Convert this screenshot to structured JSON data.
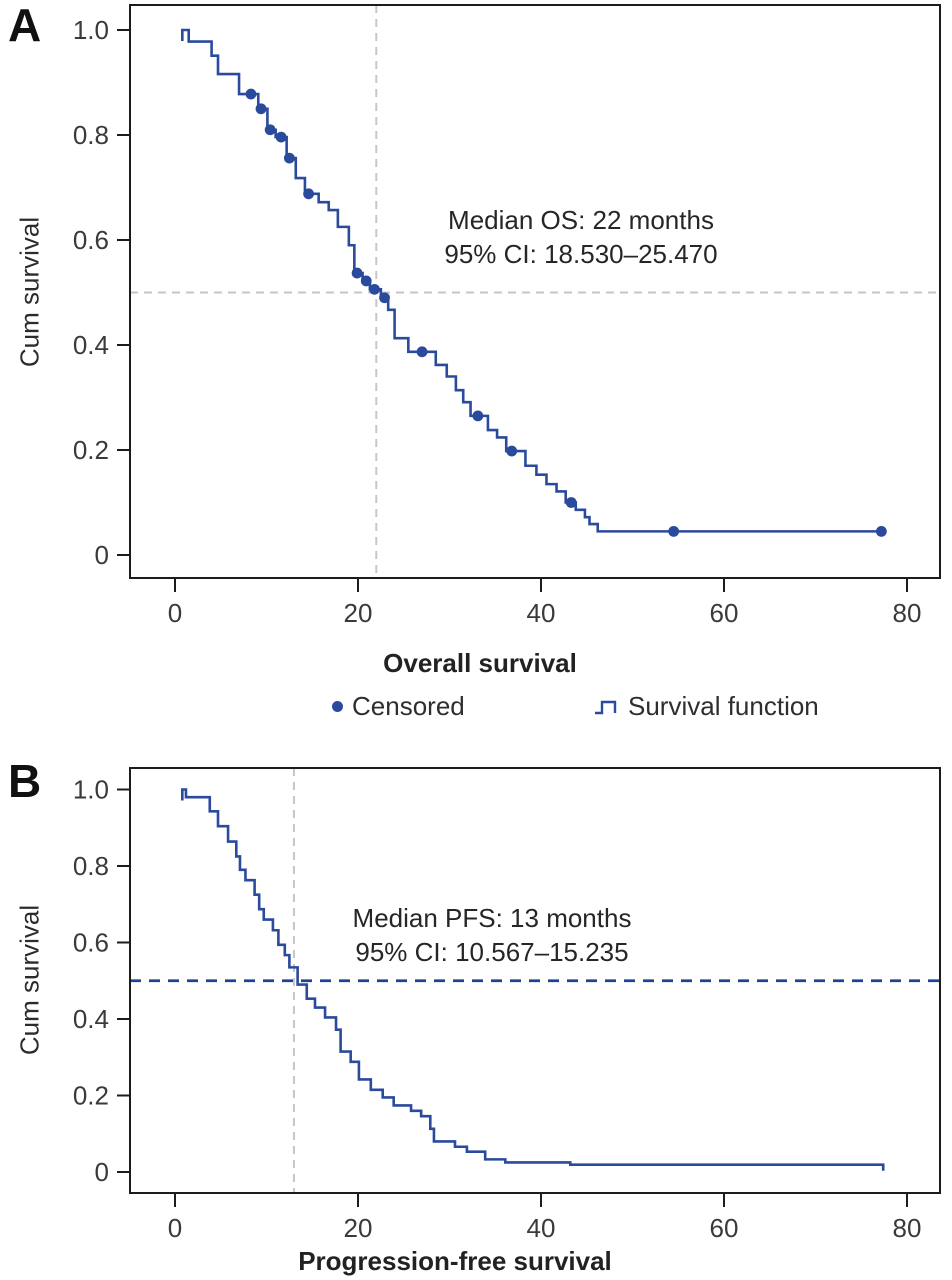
{
  "figure": {
    "panels": [
      {
        "letter": "A",
        "ylabel": "Cum survival",
        "xlabel": "Overall survival",
        "annotation_line1": "Median OS: 22 months",
        "annotation_line2": "95% CI: 18.530–25.470"
      },
      {
        "letter": "B",
        "ylabel": "Cum survival",
        "xlabel": "Progression-free survival",
        "annotation_line1": "Median PFS: 13 months",
        "annotation_line2": "95% CI: 10.567–15.235"
      }
    ],
    "legend": {
      "censored_label": "Censored",
      "survival_label": "Survival function",
      "censored_marker": "dot-icon",
      "survival_marker": "step-line-icon"
    },
    "colors": {
      "curve": "#2a4a9c",
      "ref_gray": "#c6c6c6",
      "ref_navy": "#1e4296",
      "axis": "#1c1c1c",
      "tick_text": "#3a3a3a"
    }
  },
  "chart_data": [
    {
      "type": "line",
      "subtype": "kaplan-meier-step",
      "title": "",
      "xlabel": "Overall survival",
      "ylabel": "Cum survival",
      "median_months": 22,
      "ci_95": [
        18.53,
        25.47
      ],
      "annotation": [
        "Median OS: 22 months",
        "95% CI: 18.530–25.470"
      ],
      "x_tick_values": [
        0,
        20,
        40,
        60,
        80
      ],
      "x_tick_labels": [
        "0",
        "20",
        "40",
        "60",
        "80"
      ],
      "y_tick_values": [
        0,
        0.2,
        0.4,
        0.6,
        0.8,
        1.0
      ],
      "y_tick_labels": [
        "0",
        "0.2",
        "0.4",
        "0.6",
        "0.8",
        "1.0"
      ],
      "xlim": [
        -5,
        84
      ],
      "ylim": [
        -0.05,
        1.05
      ],
      "grid": false,
      "ref_vline_x": 22,
      "ref_vline_style": "gray",
      "ref_hline_y": 0.5,
      "ref_hline_style": "gray",
      "start_notch": true,
      "end_tick": false,
      "survival_steps": [
        [
          0.8,
          1.0
        ],
        [
          1.5,
          0.978
        ],
        [
          4.0,
          0.951
        ],
        [
          4.7,
          0.916
        ],
        [
          7.0,
          0.878
        ],
        [
          9.1,
          0.85
        ],
        [
          10.1,
          0.81
        ],
        [
          11.0,
          0.796
        ],
        [
          12.2,
          0.756
        ],
        [
          13.2,
          0.718
        ],
        [
          14.2,
          0.688
        ],
        [
          15.7,
          0.672
        ],
        [
          16.8,
          0.657
        ],
        [
          17.8,
          0.625
        ],
        [
          19.0,
          0.59
        ],
        [
          19.6,
          0.537
        ],
        [
          20.5,
          0.522
        ],
        [
          21.3,
          0.506
        ],
        [
          22.5,
          0.49
        ],
        [
          23.3,
          0.467
        ],
        [
          24.0,
          0.413
        ],
        [
          25.5,
          0.387
        ],
        [
          28.5,
          0.362
        ],
        [
          29.7,
          0.34
        ],
        [
          30.7,
          0.314
        ],
        [
          31.5,
          0.291
        ],
        [
          32.3,
          0.265
        ],
        [
          34.2,
          0.238
        ],
        [
          35.2,
          0.224
        ],
        [
          36.2,
          0.198
        ],
        [
          38.3,
          0.17
        ],
        [
          39.5,
          0.153
        ],
        [
          40.6,
          0.135
        ],
        [
          41.7,
          0.121
        ],
        [
          42.7,
          0.1
        ],
        [
          43.8,
          0.086
        ],
        [
          44.8,
          0.072
        ],
        [
          45.3,
          0.059
        ],
        [
          46.2,
          0.045
        ],
        [
          77.3,
          0.045
        ]
      ],
      "censored_points": [
        [
          8.3,
          0.878
        ],
        [
          9.4,
          0.85
        ],
        [
          10.4,
          0.81
        ],
        [
          11.6,
          0.796
        ],
        [
          12.5,
          0.756
        ],
        [
          14.6,
          0.688
        ],
        [
          19.9,
          0.537
        ],
        [
          20.9,
          0.522
        ],
        [
          21.8,
          0.506
        ],
        [
          22.9,
          0.49
        ],
        [
          27.0,
          0.387
        ],
        [
          33.1,
          0.265
        ],
        [
          36.8,
          0.198
        ],
        [
          43.3,
          0.1
        ],
        [
          54.5,
          0.045
        ],
        [
          77.2,
          0.045
        ]
      ],
      "legend_entries": [
        "Censored",
        "Survival function"
      ]
    },
    {
      "type": "line",
      "subtype": "kaplan-meier-step",
      "title": "",
      "xlabel": "Progression-free survival",
      "ylabel": "Cum survival",
      "median_months": 13,
      "ci_95": [
        10.567,
        15.235
      ],
      "annotation": [
        "Median PFS: 13 months",
        "95% CI: 10.567–15.235"
      ],
      "x_tick_values": [
        0,
        20,
        40,
        60,
        80
      ],
      "x_tick_labels": [
        "0",
        "20",
        "40",
        "60",
        "80"
      ],
      "y_tick_values": [
        0,
        0.2,
        0.4,
        0.6,
        0.8,
        1.0
      ],
      "y_tick_labels": [
        "0",
        "0.2",
        "0.4",
        "0.6",
        "0.8",
        "1.0"
      ],
      "xlim": [
        -5,
        84
      ],
      "ylim": [
        -0.06,
        1.06
      ],
      "grid": false,
      "ref_vline_x": 13,
      "ref_vline_style": "gray",
      "ref_hline_y": 0.5,
      "ref_hline_style": "navy",
      "start_notch": true,
      "end_tick": true,
      "survival_steps": [
        [
          0.8,
          1.0
        ],
        [
          1.2,
          0.98
        ],
        [
          3.8,
          0.943
        ],
        [
          4.7,
          0.904
        ],
        [
          5.8,
          0.864
        ],
        [
          6.7,
          0.825
        ],
        [
          7.1,
          0.79
        ],
        [
          7.7,
          0.763
        ],
        [
          8.7,
          0.725
        ],
        [
          9.2,
          0.687
        ],
        [
          9.7,
          0.66
        ],
        [
          10.7,
          0.632
        ],
        [
          11.3,
          0.594
        ],
        [
          12.0,
          0.567
        ],
        [
          12.5,
          0.535
        ],
        [
          13.4,
          0.49
        ],
        [
          14.4,
          0.453
        ],
        [
          15.3,
          0.43
        ],
        [
          16.4,
          0.404
        ],
        [
          17.6,
          0.372
        ],
        [
          18.1,
          0.315
        ],
        [
          19.2,
          0.288
        ],
        [
          20.1,
          0.242
        ],
        [
          21.4,
          0.215
        ],
        [
          22.7,
          0.195
        ],
        [
          23.9,
          0.174
        ],
        [
          25.8,
          0.16
        ],
        [
          26.9,
          0.146
        ],
        [
          27.9,
          0.113
        ],
        [
          28.3,
          0.08
        ],
        [
          30.6,
          0.066
        ],
        [
          31.9,
          0.053
        ],
        [
          33.9,
          0.033
        ],
        [
          36.1,
          0.025
        ],
        [
          43.2,
          0.019
        ],
        [
          77.4,
          0.019
        ]
      ],
      "censored_points": [],
      "legend_entries": []
    }
  ]
}
